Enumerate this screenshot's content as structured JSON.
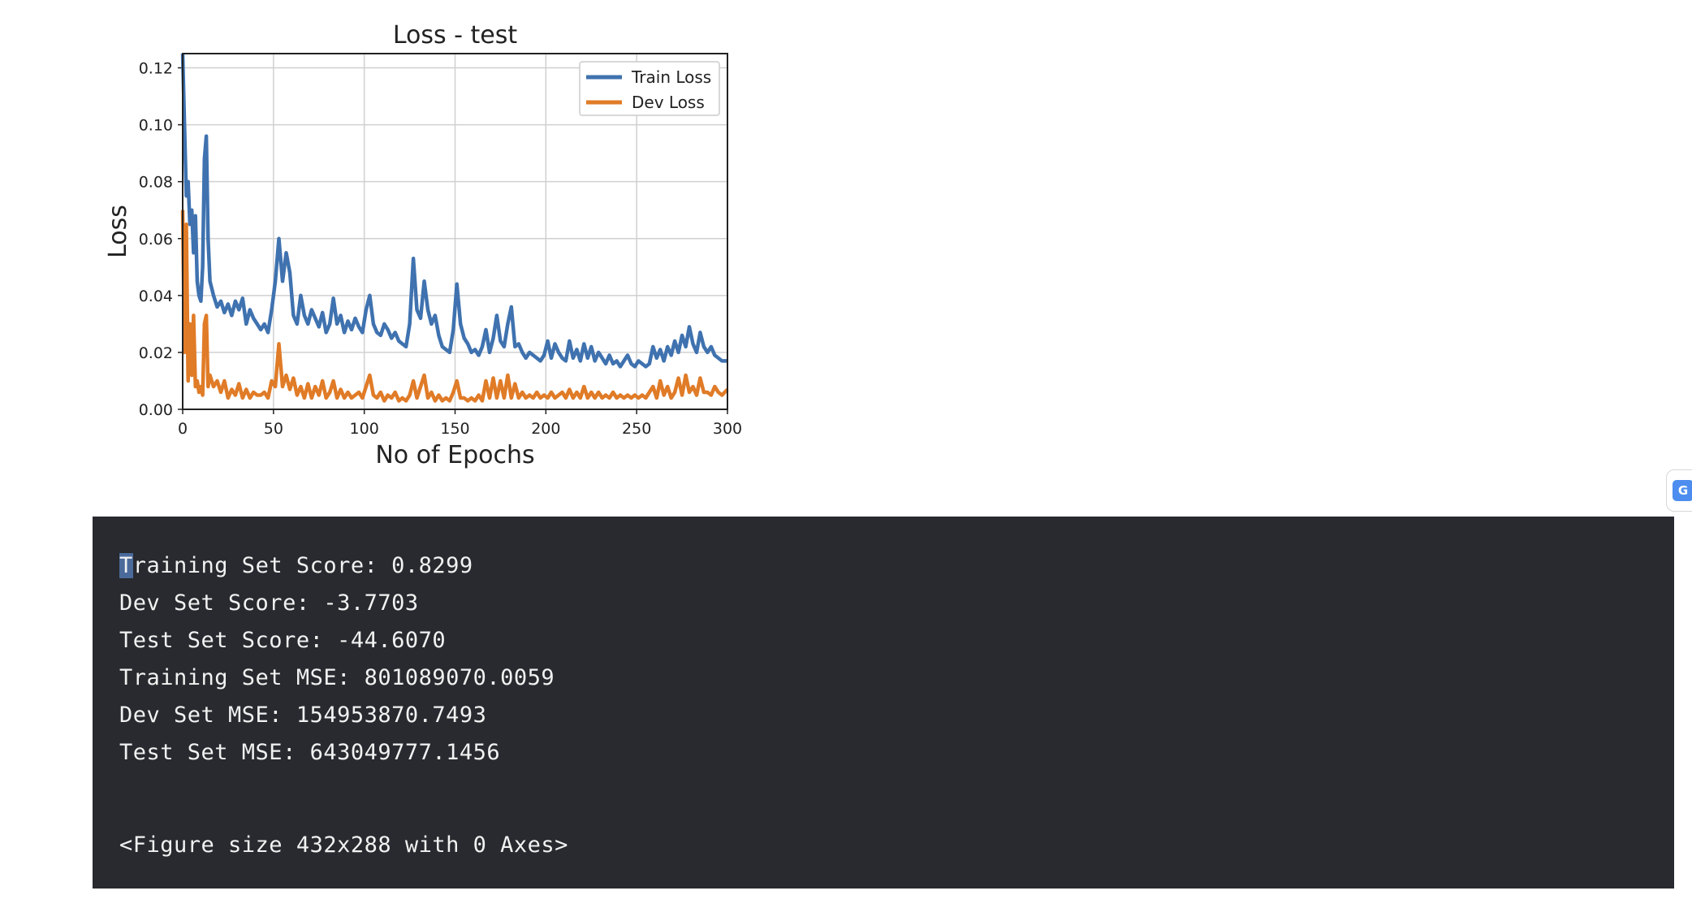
{
  "chart_data": {
    "type": "line",
    "title": "Loss - test",
    "xlabel": "No of Epochs",
    "ylabel": "Loss",
    "xlim": [
      0,
      300
    ],
    "ylim": [
      0,
      0.125
    ],
    "xticks": [
      "0",
      "50",
      "100",
      "150",
      "200",
      "250",
      "300"
    ],
    "yticks": [
      "0.00",
      "0.02",
      "0.04",
      "0.06",
      "0.08",
      "0.10",
      "0.12"
    ],
    "grid": true,
    "legend_position": "top-right",
    "series": [
      {
        "name": "Train Loss",
        "color": "#3f72af",
        "points": [
          [
            0,
            0.125
          ],
          [
            1,
            0.1
          ],
          [
            2,
            0.075
          ],
          [
            3,
            0.08
          ],
          [
            4,
            0.065
          ],
          [
            5,
            0.07
          ],
          [
            6,
            0.055
          ],
          [
            7,
            0.068
          ],
          [
            8,
            0.045
          ],
          [
            9,
            0.04
          ],
          [
            10,
            0.038
          ],
          [
            11,
            0.05
          ],
          [
            12,
            0.088
          ],
          [
            13,
            0.096
          ],
          [
            14,
            0.06
          ],
          [
            15,
            0.045
          ],
          [
            17,
            0.04
          ],
          [
            19,
            0.036
          ],
          [
            21,
            0.038
          ],
          [
            23,
            0.034
          ],
          [
            25,
            0.037
          ],
          [
            27,
            0.033
          ],
          [
            29,
            0.038
          ],
          [
            31,
            0.035
          ],
          [
            33,
            0.039
          ],
          [
            35,
            0.03
          ],
          [
            37,
            0.035
          ],
          [
            39,
            0.032
          ],
          [
            41,
            0.03
          ],
          [
            43,
            0.028
          ],
          [
            45,
            0.03
          ],
          [
            47,
            0.027
          ],
          [
            49,
            0.035
          ],
          [
            51,
            0.045
          ],
          [
            53,
            0.06
          ],
          [
            55,
            0.045
          ],
          [
            57,
            0.055
          ],
          [
            59,
            0.048
          ],
          [
            61,
            0.033
          ],
          [
            63,
            0.03
          ],
          [
            65,
            0.04
          ],
          [
            67,
            0.033
          ],
          [
            69,
            0.03
          ],
          [
            71,
            0.035
          ],
          [
            73,
            0.032
          ],
          [
            75,
            0.029
          ],
          [
            77,
            0.034
          ],
          [
            79,
            0.027
          ],
          [
            81,
            0.03
          ],
          [
            83,
            0.039
          ],
          [
            85,
            0.03
          ],
          [
            87,
            0.033
          ],
          [
            89,
            0.027
          ],
          [
            91,
            0.031
          ],
          [
            93,
            0.028
          ],
          [
            95,
            0.032
          ],
          [
            97,
            0.029
          ],
          [
            99,
            0.027
          ],
          [
            101,
            0.035
          ],
          [
            103,
            0.04
          ],
          [
            105,
            0.03
          ],
          [
            107,
            0.027
          ],
          [
            109,
            0.026
          ],
          [
            111,
            0.03
          ],
          [
            113,
            0.028
          ],
          [
            115,
            0.025
          ],
          [
            117,
            0.027
          ],
          [
            119,
            0.024
          ],
          [
            121,
            0.023
          ],
          [
            123,
            0.022
          ],
          [
            125,
            0.03
          ],
          [
            127,
            0.053
          ],
          [
            129,
            0.035
          ],
          [
            131,
            0.032
          ],
          [
            133,
            0.045
          ],
          [
            135,
            0.035
          ],
          [
            137,
            0.03
          ],
          [
            139,
            0.033
          ],
          [
            141,
            0.026
          ],
          [
            143,
            0.022
          ],
          [
            145,
            0.021
          ],
          [
            147,
            0.02
          ],
          [
            149,
            0.028
          ],
          [
            151,
            0.044
          ],
          [
            153,
            0.03
          ],
          [
            155,
            0.025
          ],
          [
            157,
            0.023
          ],
          [
            159,
            0.02
          ],
          [
            161,
            0.021
          ],
          [
            163,
            0.019
          ],
          [
            165,
            0.022
          ],
          [
            167,
            0.028
          ],
          [
            169,
            0.02
          ],
          [
            171,
            0.025
          ],
          [
            173,
            0.033
          ],
          [
            175,
            0.024
          ],
          [
            177,
            0.022
          ],
          [
            179,
            0.03
          ],
          [
            181,
            0.036
          ],
          [
            183,
            0.022
          ],
          [
            185,
            0.023
          ],
          [
            187,
            0.02
          ],
          [
            189,
            0.018
          ],
          [
            191,
            0.02
          ],
          [
            193,
            0.019
          ],
          [
            195,
            0.018
          ],
          [
            197,
            0.017
          ],
          [
            199,
            0.019
          ],
          [
            201,
            0.024
          ],
          [
            203,
            0.018
          ],
          [
            205,
            0.023
          ],
          [
            207,
            0.02
          ],
          [
            209,
            0.018
          ],
          [
            211,
            0.017
          ],
          [
            213,
            0.024
          ],
          [
            215,
            0.018
          ],
          [
            217,
            0.021
          ],
          [
            219,
            0.017
          ],
          [
            221,
            0.023
          ],
          [
            223,
            0.018
          ],
          [
            225,
            0.022
          ],
          [
            227,
            0.017
          ],
          [
            229,
            0.02
          ],
          [
            231,
            0.018
          ],
          [
            233,
            0.016
          ],
          [
            235,
            0.019
          ],
          [
            237,
            0.016
          ],
          [
            239,
            0.017
          ],
          [
            241,
            0.015
          ],
          [
            243,
            0.017
          ],
          [
            245,
            0.019
          ],
          [
            247,
            0.016
          ],
          [
            249,
            0.015
          ],
          [
            251,
            0.017
          ],
          [
            253,
            0.016
          ],
          [
            255,
            0.015
          ],
          [
            257,
            0.016
          ],
          [
            259,
            0.022
          ],
          [
            261,
            0.018
          ],
          [
            263,
            0.021
          ],
          [
            265,
            0.017
          ],
          [
            267,
            0.022
          ],
          [
            269,
            0.019
          ],
          [
            271,
            0.024
          ],
          [
            273,
            0.02
          ],
          [
            275,
            0.026
          ],
          [
            277,
            0.022
          ],
          [
            279,
            0.029
          ],
          [
            281,
            0.023
          ],
          [
            283,
            0.02
          ],
          [
            285,
            0.027
          ],
          [
            287,
            0.022
          ],
          [
            289,
            0.02
          ],
          [
            291,
            0.022
          ],
          [
            293,
            0.019
          ],
          [
            295,
            0.018
          ],
          [
            297,
            0.017
          ],
          [
            300,
            0.017
          ]
        ]
      },
      {
        "name": "Dev Loss",
        "color": "#e07b27",
        "points": [
          [
            0,
            0.07
          ],
          [
            1,
            0.02
          ],
          [
            2,
            0.065
          ],
          [
            3,
            0.01
          ],
          [
            4,
            0.03
          ],
          [
            5,
            0.012
          ],
          [
            6,
            0.033
          ],
          [
            7,
            0.008
          ],
          [
            8,
            0.01
          ],
          [
            9,
            0.006
          ],
          [
            10,
            0.008
          ],
          [
            11,
            0.005
          ],
          [
            12,
            0.03
          ],
          [
            13,
            0.033
          ],
          [
            14,
            0.008
          ],
          [
            15,
            0.012
          ],
          [
            17,
            0.008
          ],
          [
            19,
            0.01
          ],
          [
            21,
            0.006
          ],
          [
            23,
            0.01
          ],
          [
            25,
            0.004
          ],
          [
            27,
            0.007
          ],
          [
            29,
            0.005
          ],
          [
            31,
            0.009
          ],
          [
            33,
            0.004
          ],
          [
            35,
            0.007
          ],
          [
            37,
            0.004
          ],
          [
            39,
            0.006
          ],
          [
            41,
            0.005
          ],
          [
            43,
            0.005
          ],
          [
            45,
            0.006
          ],
          [
            47,
            0.004
          ],
          [
            49,
            0.01
          ],
          [
            51,
            0.008
          ],
          [
            53,
            0.023
          ],
          [
            55,
            0.008
          ],
          [
            57,
            0.012
          ],
          [
            59,
            0.007
          ],
          [
            61,
            0.011
          ],
          [
            63,
            0.005
          ],
          [
            65,
            0.008
          ],
          [
            67,
            0.004
          ],
          [
            69,
            0.009
          ],
          [
            71,
            0.004
          ],
          [
            73,
            0.008
          ],
          [
            75,
            0.005
          ],
          [
            77,
            0.01
          ],
          [
            79,
            0.004
          ],
          [
            81,
            0.006
          ],
          [
            83,
            0.01
          ],
          [
            85,
            0.004
          ],
          [
            87,
            0.007
          ],
          [
            89,
            0.004
          ],
          [
            91,
            0.006
          ],
          [
            93,
            0.004
          ],
          [
            95,
            0.005
          ],
          [
            97,
            0.006
          ],
          [
            99,
            0.004
          ],
          [
            101,
            0.008
          ],
          [
            103,
            0.012
          ],
          [
            105,
            0.005
          ],
          [
            107,
            0.004
          ],
          [
            109,
            0.006
          ],
          [
            111,
            0.003
          ],
          [
            113,
            0.005
          ],
          [
            115,
            0.004
          ],
          [
            117,
            0.006
          ],
          [
            119,
            0.003
          ],
          [
            121,
            0.004
          ],
          [
            123,
            0.003
          ],
          [
            125,
            0.005
          ],
          [
            127,
            0.01
          ],
          [
            129,
            0.004
          ],
          [
            131,
            0.008
          ],
          [
            133,
            0.012
          ],
          [
            135,
            0.004
          ],
          [
            137,
            0.006
          ],
          [
            139,
            0.003
          ],
          [
            141,
            0.005
          ],
          [
            143,
            0.003
          ],
          [
            145,
            0.004
          ],
          [
            147,
            0.003
          ],
          [
            149,
            0.006
          ],
          [
            151,
            0.01
          ],
          [
            153,
            0.004
          ],
          [
            155,
            0.004
          ],
          [
            157,
            0.003
          ],
          [
            159,
            0.004
          ],
          [
            161,
            0.003
          ],
          [
            163,
            0.005
          ],
          [
            165,
            0.003
          ],
          [
            167,
            0.01
          ],
          [
            169,
            0.004
          ],
          [
            171,
            0.011
          ],
          [
            173,
            0.004
          ],
          [
            175,
            0.01
          ],
          [
            177,
            0.004
          ],
          [
            179,
            0.012
          ],
          [
            181,
            0.004
          ],
          [
            183,
            0.009
          ],
          [
            185,
            0.004
          ],
          [
            187,
            0.006
          ],
          [
            189,
            0.004
          ],
          [
            191,
            0.005
          ],
          [
            193,
            0.004
          ],
          [
            195,
            0.006
          ],
          [
            197,
            0.004
          ],
          [
            199,
            0.005
          ],
          [
            201,
            0.004
          ],
          [
            203,
            0.006
          ],
          [
            205,
            0.004
          ],
          [
            207,
            0.005
          ],
          [
            209,
            0.006
          ],
          [
            211,
            0.004
          ],
          [
            213,
            0.007
          ],
          [
            215,
            0.004
          ],
          [
            217,
            0.006
          ],
          [
            219,
            0.004
          ],
          [
            221,
            0.008
          ],
          [
            223,
            0.004
          ],
          [
            225,
            0.006
          ],
          [
            227,
            0.004
          ],
          [
            229,
            0.006
          ],
          [
            231,
            0.004
          ],
          [
            233,
            0.005
          ],
          [
            235,
            0.004
          ],
          [
            237,
            0.006
          ],
          [
            239,
            0.004
          ],
          [
            241,
            0.005
          ],
          [
            243,
            0.004
          ],
          [
            245,
            0.005
          ],
          [
            247,
            0.004
          ],
          [
            249,
            0.005
          ],
          [
            251,
            0.004
          ],
          [
            253,
            0.005
          ],
          [
            255,
            0.004
          ],
          [
            257,
            0.006
          ],
          [
            259,
            0.008
          ],
          [
            261,
            0.004
          ],
          [
            263,
            0.01
          ],
          [
            265,
            0.005
          ],
          [
            267,
            0.008
          ],
          [
            269,
            0.004
          ],
          [
            271,
            0.006
          ],
          [
            273,
            0.011
          ],
          [
            275,
            0.005
          ],
          [
            277,
            0.012
          ],
          [
            279,
            0.006
          ],
          [
            281,
            0.008
          ],
          [
            283,
            0.005
          ],
          [
            285,
            0.011
          ],
          [
            287,
            0.006
          ],
          [
            289,
            0.006
          ],
          [
            291,
            0.005
          ],
          [
            293,
            0.008
          ],
          [
            295,
            0.006
          ],
          [
            297,
            0.005
          ],
          [
            300,
            0.007
          ]
        ]
      }
    ]
  },
  "output": {
    "lines": [
      "Training Set Score: 0.8299",
      "Dev Set Score: -3.7703",
      "Test Set Score: -44.6070",
      "Training Set MSE: 801089070.0059",
      "Dev Set MSE: 154953870.7493",
      "Test Set MSE: 643049777.1456"
    ],
    "first_line_cursor_char": "T",
    "first_line_rest": "raining Set Score: 0.8299",
    "figure_repr": "<Figure size 432x288 with 0 Axes>"
  },
  "side_widget": {
    "icon": "google-translate-icon",
    "label": "G",
    "color": "#4d8df0"
  }
}
